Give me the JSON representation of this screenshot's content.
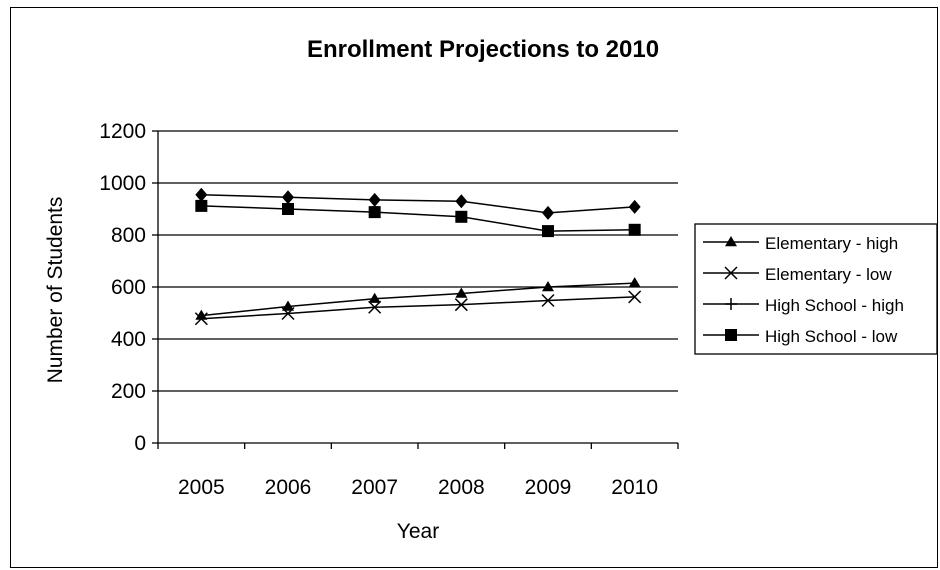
{
  "chart_data": {
    "type": "line",
    "title": "Enrollment Projections to 2010",
    "xlabel": "Year",
    "ylabel": "Number of Students",
    "categories": [
      "2005",
      "2006",
      "2007",
      "2008",
      "2009",
      "2010"
    ],
    "ylim": [
      0,
      1200
    ],
    "yticks": [
      "0",
      "200",
      "400",
      "600",
      "800",
      "1000",
      "1200"
    ],
    "grid": "horizontal",
    "legend_position": "right",
    "series": [
      {
        "name": "Elementary - high",
        "marker": "triangle",
        "values": [
          490,
          525,
          555,
          575,
          600,
          615
        ]
      },
      {
        "name": "Elementary - low",
        "marker": "x",
        "values": [
          478,
          498,
          522,
          532,
          548,
          562
        ]
      },
      {
        "name": "High School - high",
        "marker": "plus-diamond",
        "values": [
          955,
          945,
          935,
          930,
          885,
          908
        ]
      },
      {
        "name": "High School - low",
        "marker": "square",
        "values": [
          912,
          900,
          888,
          870,
          815,
          820
        ]
      }
    ]
  },
  "colors": {
    "line": "#000000",
    "background": "#ffffff"
  }
}
